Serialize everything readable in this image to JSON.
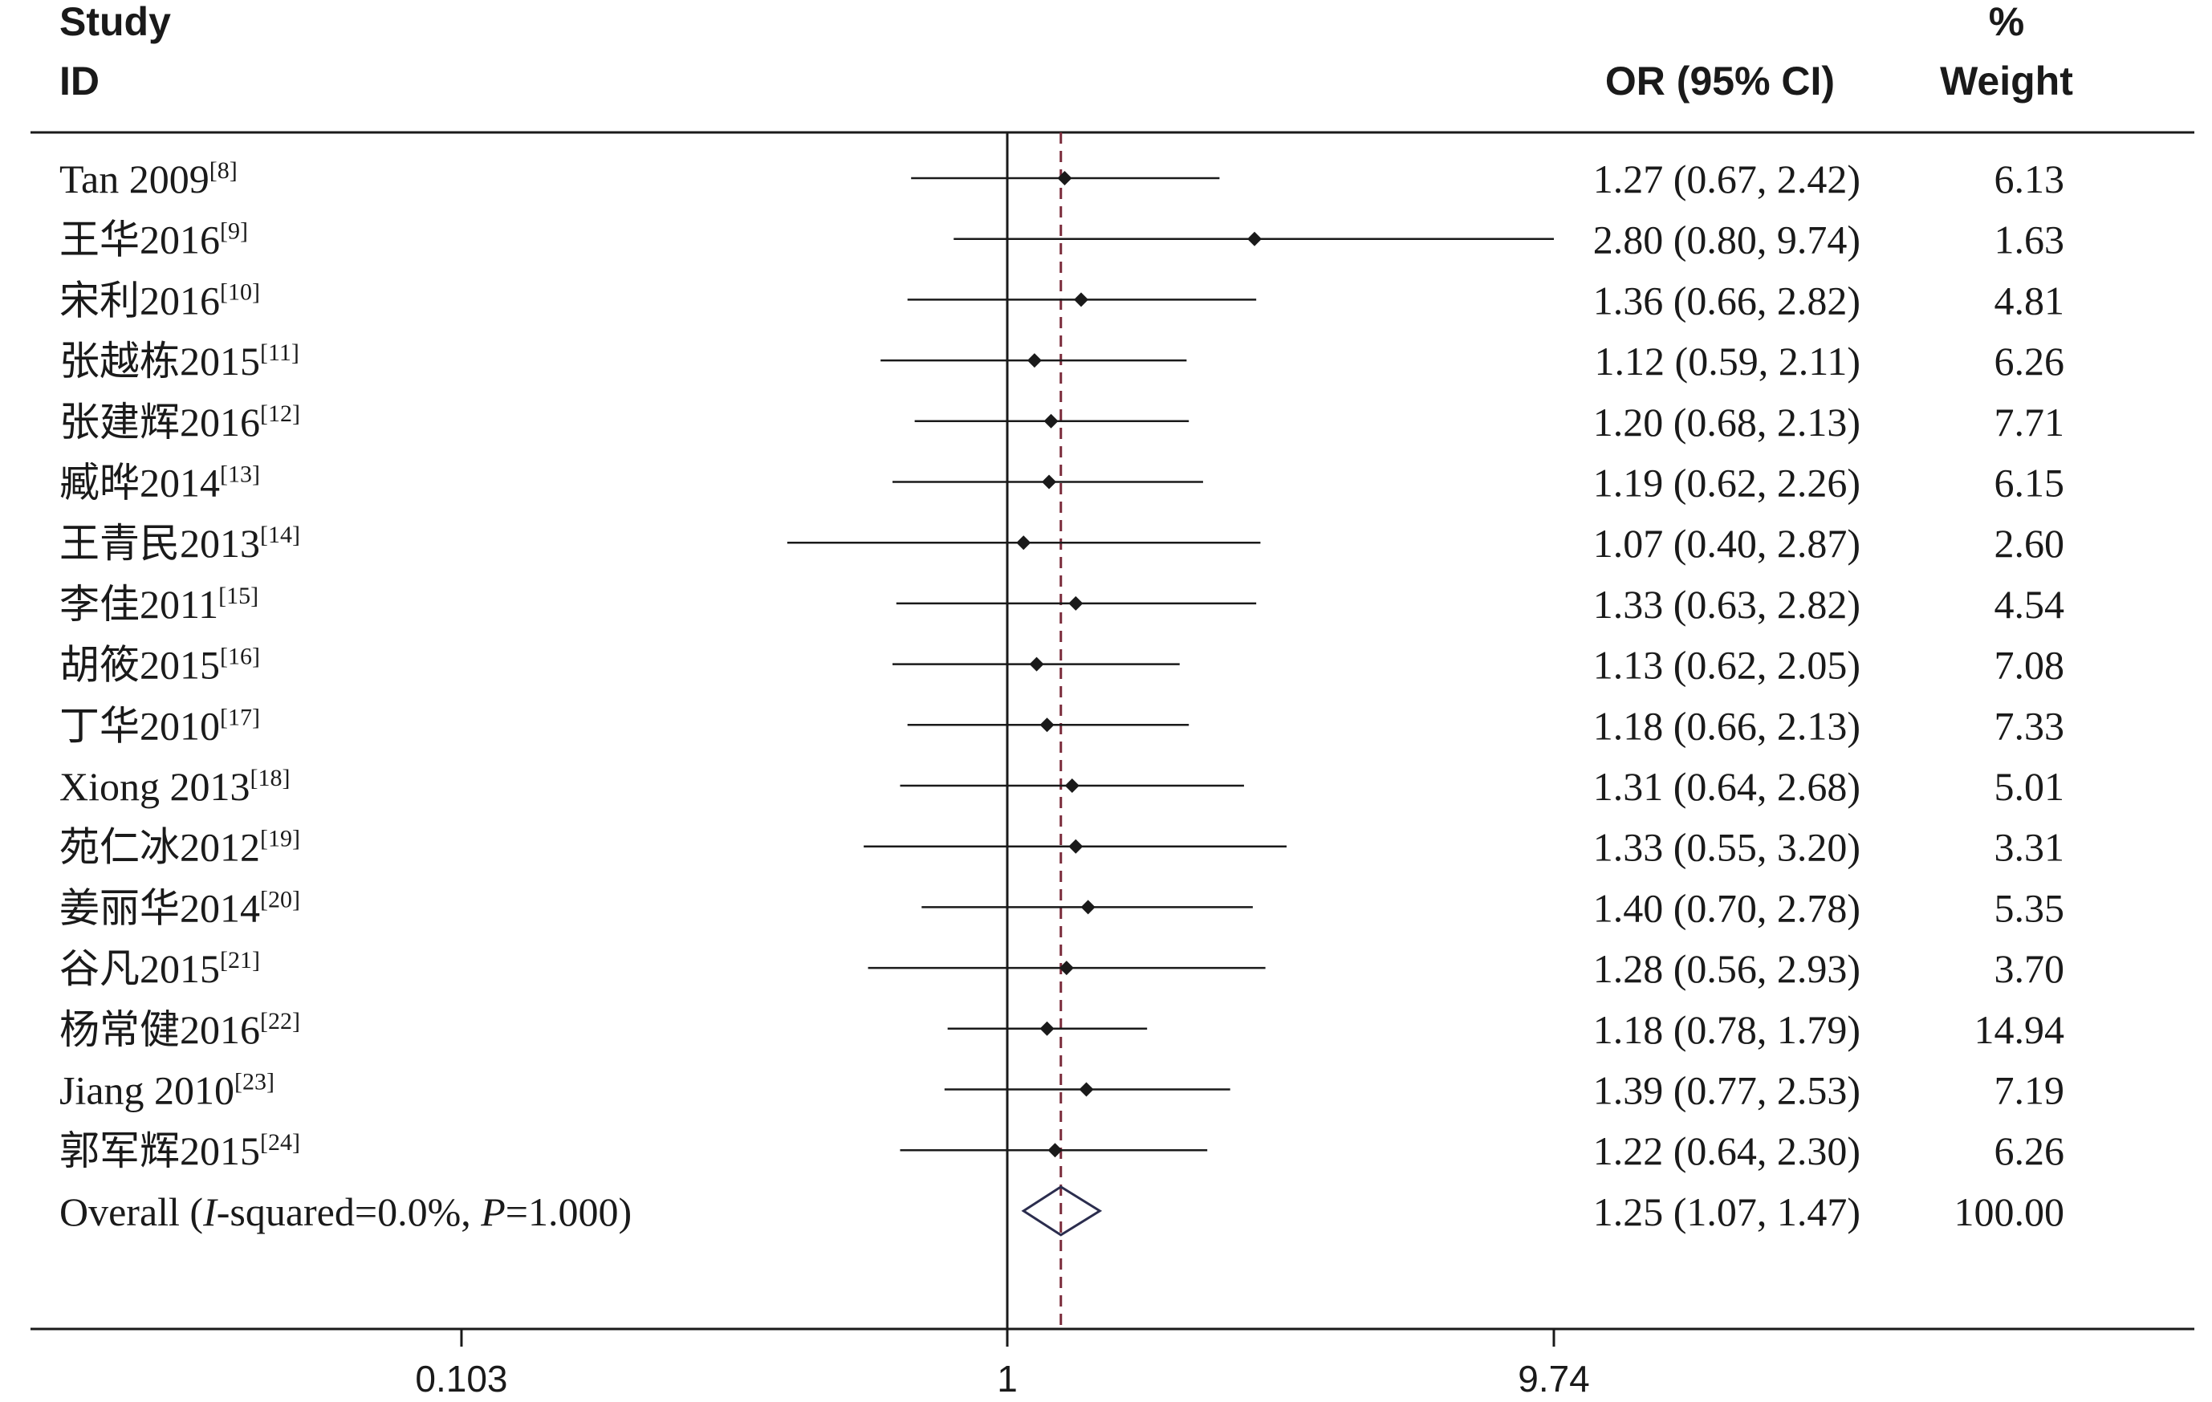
{
  "header": {
    "study_line1": "Study",
    "study_line2": "ID",
    "or_label": "OR (95% CI)",
    "weight_line1": "%",
    "weight_line2": "Weight"
  },
  "chart_data": {
    "type": "forest",
    "x_scale": "log",
    "x_ticks": [
      {
        "value": 0.103,
        "label": "0.103"
      },
      {
        "value": 1,
        "label": "1"
      },
      {
        "value": 9.74,
        "label": "9.74"
      }
    ],
    "xlim": [
      0.103,
      9.74
    ],
    "null_line": 1,
    "overall_line": 1.25,
    "studies": [
      {
        "label": "Tan 2009",
        "ref": "[8]",
        "or": 1.27,
        "lo": 0.67,
        "hi": 2.42,
        "ci_text": "1.27 (0.67, 2.42)",
        "weight": "6.13"
      },
      {
        "label": "王华2016",
        "ref": "[9]",
        "or": 2.8,
        "lo": 0.8,
        "hi": 9.74,
        "ci_text": "2.80 (0.80, 9.74)",
        "weight": "1.63"
      },
      {
        "label": "宋利2016",
        "ref": "[10]",
        "or": 1.36,
        "lo": 0.66,
        "hi": 2.82,
        "ci_text": "1.36 (0.66, 2.82)",
        "weight": "4.81"
      },
      {
        "label": "张越栋2015",
        "ref": "[11]",
        "or": 1.12,
        "lo": 0.59,
        "hi": 2.11,
        "ci_text": "1.12 (0.59, 2.11)",
        "weight": "6.26"
      },
      {
        "label": "张建辉2016",
        "ref": "[12]",
        "or": 1.2,
        "lo": 0.68,
        "hi": 2.13,
        "ci_text": "1.20 (0.68, 2.13)",
        "weight": "7.71"
      },
      {
        "label": "臧晔2014",
        "ref": "[13]",
        "or": 1.19,
        "lo": 0.62,
        "hi": 2.26,
        "ci_text": "1.19 (0.62, 2.26)",
        "weight": "6.15"
      },
      {
        "label": "王青民2013",
        "ref": "[14]",
        "or": 1.07,
        "lo": 0.4,
        "hi": 2.87,
        "ci_text": "1.07 (0.40, 2.87)",
        "weight": "2.60"
      },
      {
        "label": "李佳2011",
        "ref": "[15]",
        "or": 1.33,
        "lo": 0.63,
        "hi": 2.82,
        "ci_text": "1.33 (0.63, 2.82)",
        "weight": "4.54"
      },
      {
        "label": "胡筱2015",
        "ref": "[16]",
        "or": 1.13,
        "lo": 0.62,
        "hi": 2.05,
        "ci_text": "1.13 (0.62, 2.05)",
        "weight": "7.08"
      },
      {
        "label": "丁华2010",
        "ref": "[17]",
        "or": 1.18,
        "lo": 0.66,
        "hi": 2.13,
        "ci_text": "1.18 (0.66, 2.13)",
        "weight": "7.33"
      },
      {
        "label": "Xiong 2013",
        "ref": "[18]",
        "or": 1.31,
        "lo": 0.64,
        "hi": 2.68,
        "ci_text": "1.31 (0.64, 2.68)",
        "weight": "5.01"
      },
      {
        "label": "苑仁冰2012",
        "ref": "[19]",
        "or": 1.33,
        "lo": 0.55,
        "hi": 3.2,
        "ci_text": "1.33 (0.55, 3.20)",
        "weight": "3.31"
      },
      {
        "label": "姜丽华2014",
        "ref": "[20]",
        "or": 1.4,
        "lo": 0.7,
        "hi": 2.78,
        "ci_text": "1.40 (0.70, 2.78)",
        "weight": "5.35"
      },
      {
        "label": "谷凡2015",
        "ref": "[21]",
        "or": 1.28,
        "lo": 0.56,
        "hi": 2.93,
        "ci_text": "1.28 (0.56, 2.93)",
        "weight": "3.70"
      },
      {
        "label": "杨常健2016",
        "ref": "[22]",
        "or": 1.18,
        "lo": 0.78,
        "hi": 1.79,
        "ci_text": "1.18 (0.78, 1.79)",
        "weight": "14.94"
      },
      {
        "label": "Jiang 2010",
        "ref": "[23]",
        "or": 1.39,
        "lo": 0.77,
        "hi": 2.53,
        "ci_text": "1.39 (0.77, 2.53)",
        "weight": "7.19"
      },
      {
        "label": "郭军辉2015",
        "ref": "[24]",
        "or": 1.22,
        "lo": 0.64,
        "hi": 2.3,
        "ci_text": "1.22 (0.64, 2.30)",
        "weight": "6.26"
      }
    ],
    "overall": {
      "label_prefix": "Overall  (",
      "i_letter": "I",
      "i_text": "-squared=0.0%, ",
      "p_letter": "P",
      "p_text": "=1.000)",
      "or": 1.25,
      "lo": 1.07,
      "hi": 1.47,
      "ci_text": "1.25 (1.07, 1.47)",
      "weight": "100.00"
    },
    "colors": {
      "text": "#1a1a1a",
      "marker": "#1a1a1a",
      "diamond": "#2b2d4e",
      "overall_line": "#7a2a3a"
    }
  }
}
